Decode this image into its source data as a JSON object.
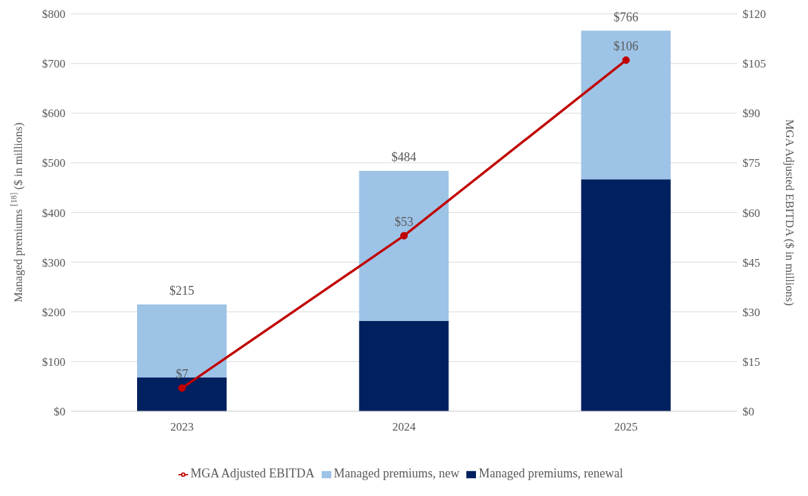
{
  "chart_data": {
    "type": "bar",
    "stacked": true,
    "categories": [
      "2023",
      "2024",
      "2025"
    ],
    "ylabel": "Managed premiums $^{[18]}$ ($ in millions)",
    "y2label": "MGA Adjusted EBITDA ($ in millions)",
    "series": [
      {
        "name": "Managed premiums, renewal",
        "color": "#002060",
        "values": [
          68,
          182,
          467
        ]
      },
      {
        "name": "Managed premiums, new",
        "color": "#9dc3e6",
        "values": [
          147,
          302,
          299
        ]
      },
      {
        "name": "MGA Adjusted EBITDA",
        "type": "line",
        "axis": "y2",
        "color": "#c00000",
        "marker": "circle",
        "values": [
          7,
          53,
          106
        ],
        "value_labels": [
          "$7",
          "$53",
          "$106"
        ]
      }
    ],
    "totals": [
      "$215",
      "$484",
      "$766"
    ],
    "ylim": [
      0,
      800
    ],
    "yticks": [
      {
        "value": 0,
        "label": "$0"
      },
      {
        "value": 100,
        "label": "$100"
      },
      {
        "value": 200,
        "label": "$200"
      },
      {
        "value": 300,
        "label": "$300"
      },
      {
        "value": 400,
        "label": "$400"
      },
      {
        "value": 500,
        "label": "$500"
      },
      {
        "value": 600,
        "label": "$600"
      },
      {
        "value": 700,
        "label": "$700"
      },
      {
        "value": 800,
        "label": "$800"
      }
    ],
    "y2lim": [
      0,
      120
    ],
    "y2ticks": [
      {
        "value": 0,
        "label": "$0"
      },
      {
        "value": 15,
        "label": "$15"
      },
      {
        "value": 30,
        "label": "$30"
      },
      {
        "value": 45,
        "label": "$45"
      },
      {
        "value": 60,
        "label": "$60"
      },
      {
        "value": 75,
        "label": "$75"
      },
      {
        "value": 90,
        "label": "$90"
      },
      {
        "value": 105,
        "label": "$105"
      },
      {
        "value": 120,
        "label": "$120"
      }
    ],
    "grid": "y",
    "legend": "bottom"
  }
}
